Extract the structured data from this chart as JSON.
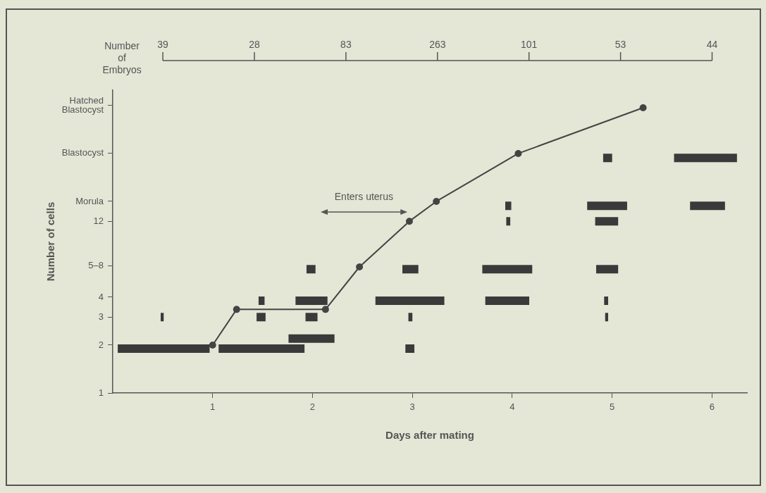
{
  "chart_data": {
    "type": "line",
    "xlabel": "Days after mating",
    "ylabel": "Number of cells",
    "xlim": [
      0,
      6.35
    ],
    "xticks": [
      1,
      2,
      3,
      4,
      5,
      6
    ],
    "ylim": [
      1,
      80
    ],
    "yticks": [
      1,
      2,
      3,
      4,
      {
        "value": 6.3,
        "label": "5–8"
      },
      12,
      {
        "value": 16,
        "label": "Morula"
      },
      {
        "value": 32,
        "label": "Blastocyst"
      },
      {
        "value": 64,
        "label": "Hatched Blastocyst"
      }
    ],
    "log": "y",
    "grid": false,
    "legend": false,
    "annotations": [
      "Number of Embryos",
      "39",
      "28",
      "83",
      "263",
      "101",
      "53",
      "44",
      "Enters uterus"
    ],
    "series": [
      {
        "marker": "none",
        "color": "#3a3a3a",
        "x": [
          0.05,
          0.97,
          null,
          1.06,
          1.92,
          null,
          2.93,
          3.02,
          null,
          1.76,
          2.22,
          null,
          0.48,
          0.51,
          null,
          1.44,
          1.53,
          null,
          1.93,
          2.05,
          null,
          2.96,
          3.0,
          null,
          4.93,
          4.96,
          null,
          1.46,
          1.52,
          null,
          1.83,
          2.15,
          null,
          2.63,
          3.32,
          null,
          3.73,
          4.17,
          null,
          4.92,
          4.96,
          null,
          1.94,
          2.03,
          null,
          2.9,
          3.06,
          null,
          3.7,
          4.2,
          null,
          4.84,
          5.06,
          null,
          3.94,
          3.98,
          null,
          4.83,
          5.06,
          null,
          3.93,
          3.99,
          null,
          4.75,
          5.15,
          null,
          5.78,
          6.13,
          null,
          4.91,
          5.0,
          null,
          5.62,
          6.25
        ],
        "values": [
          1.9,
          1.9,
          null,
          1.9,
          1.9,
          null,
          1.9,
          1.9,
          null,
          2.2,
          2.2,
          null,
          3,
          3,
          null,
          3,
          3,
          null,
          3,
          3,
          null,
          3,
          3,
          null,
          3,
          3,
          null,
          3.8,
          3.8,
          null,
          3.8,
          3.8,
          null,
          3.8,
          3.8,
          null,
          3.8,
          3.8,
          null,
          3.8,
          3.8,
          null,
          6,
          6,
          null,
          6,
          6,
          null,
          6,
          6,
          null,
          6,
          6,
          null,
          12,
          12,
          null,
          12,
          12,
          null,
          15,
          15,
          null,
          15,
          15,
          null,
          15,
          15,
          null,
          30,
          30,
          null,
          30,
          30
        ]
      },
      {
        "marker": "circle",
        "color": "#444444",
        "x": [
          1.0,
          1.24,
          2.13,
          2.47,
          2.97,
          3.24,
          4.06,
          5.31
        ],
        "values": [
          2,
          3.35,
          3.35,
          6.2,
          12,
          16,
          32,
          62
        ]
      }
    ]
  }
}
